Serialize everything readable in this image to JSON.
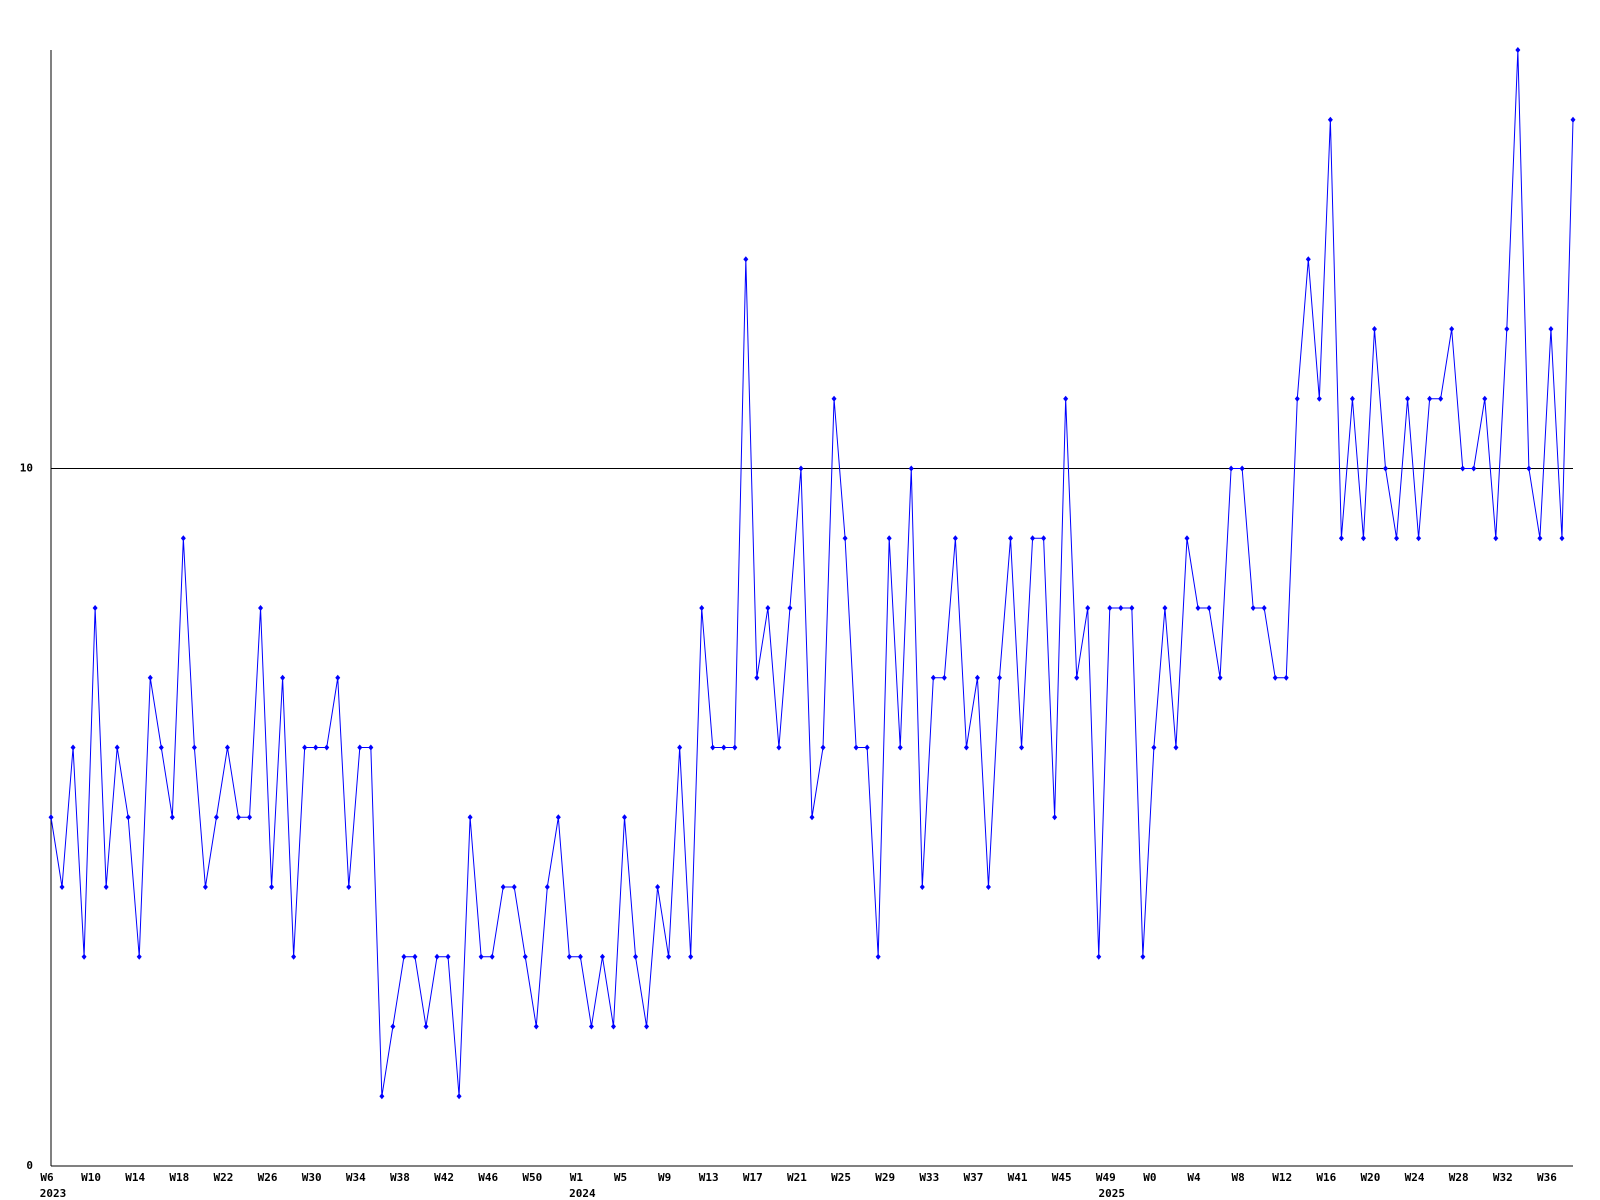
{
  "chart_data": {
    "type": "line",
    "color": "#0000ff",
    "categories": [
      "W6",
      null,
      null,
      null,
      "W10",
      null,
      null,
      null,
      "W14",
      null,
      null,
      null,
      "W18",
      null,
      null,
      null,
      "W22",
      null,
      null,
      null,
      "W26",
      null,
      null,
      null,
      "W30",
      null,
      null,
      null,
      "W34",
      null,
      null,
      null,
      "W38",
      null,
      null,
      null,
      "W42",
      null,
      null,
      null,
      "W46",
      null,
      null,
      null,
      "W50",
      null,
      null,
      null,
      "W1",
      null,
      null,
      null,
      "W5",
      null,
      null,
      null,
      "W9",
      null,
      null,
      null,
      "W13",
      null,
      null,
      null,
      "W17",
      null,
      null,
      null,
      "W21",
      null,
      null,
      null,
      "W25",
      null,
      null,
      null,
      "W29",
      null,
      null,
      null,
      "W33",
      null,
      null,
      null,
      "W37",
      null,
      null,
      null,
      "W41",
      null,
      null,
      null,
      "W45",
      null,
      null,
      null,
      "W49",
      null,
      null,
      null,
      "W0",
      null,
      null,
      null,
      "W4",
      null,
      null,
      null,
      "W8",
      null,
      null,
      null,
      "W12",
      null,
      null,
      null,
      "W16",
      null,
      null,
      null,
      "W20",
      null,
      null,
      null,
      "W24",
      null,
      null,
      null,
      "W28",
      null,
      null,
      null,
      "W32",
      null,
      null,
      null,
      "W36",
      null,
      null
    ],
    "years": [
      "2023",
      null,
      null,
      null,
      null,
      null,
      null,
      null,
      null,
      null,
      null,
      null,
      null,
      null,
      null,
      null,
      null,
      null,
      null,
      null,
      null,
      null,
      null,
      null,
      null,
      null,
      null,
      null,
      null,
      null,
      null,
      null,
      null,
      null,
      null,
      null,
      null,
      null,
      null,
      null,
      null,
      null,
      null,
      null,
      null,
      null,
      null,
      null,
      "2024",
      null,
      null,
      null,
      null,
      null,
      null,
      null,
      null,
      null,
      null,
      null,
      null,
      null,
      null,
      null,
      null,
      null,
      null,
      null,
      null,
      null,
      null,
      null,
      null,
      null,
      null,
      null,
      null,
      null,
      null,
      null,
      null,
      null,
      null,
      null,
      null,
      null,
      null,
      null,
      null,
      null,
      null,
      null,
      null,
      null,
      null,
      null,
      "2025",
      null,
      null,
      null,
      null,
      null,
      null,
      null,
      null,
      null,
      null,
      null,
      null,
      null,
      null,
      null,
      null,
      null,
      null,
      null,
      null,
      null,
      null,
      null,
      null,
      null,
      null,
      null,
      null,
      null,
      null,
      null,
      null,
      null,
      null,
      null,
      null,
      null,
      null
    ],
    "values": [
      5,
      4,
      6,
      3,
      8,
      4,
      6,
      5,
      3,
      7,
      6,
      5,
      9,
      6,
      4,
      5,
      6,
      5,
      5,
      8,
      4,
      7,
      3,
      6,
      6,
      6,
      7,
      4,
      6,
      6,
      1,
      2,
      3,
      3,
      2,
      3,
      3,
      1,
      5,
      3,
      3,
      4,
      4,
      3,
      2,
      4,
      5,
      3,
      3,
      2,
      3,
      2,
      5,
      3,
      2,
      4,
      3,
      6,
      3,
      8,
      6,
      6,
      6,
      13,
      7,
      8,
      6,
      8,
      10,
      5,
      6,
      11,
      9,
      6,
      6,
      3,
      9,
      6,
      10,
      4,
      7,
      7,
      9,
      6,
      7,
      4,
      7,
      9,
      6,
      9,
      9,
      5,
      11,
      7,
      8,
      3,
      8,
      8,
      8,
      3,
      6,
      8,
      6,
      9,
      8,
      8,
      7,
      10,
      10,
      8,
      8,
      7,
      7,
      11,
      13,
      11,
      15,
      9,
      11,
      9,
      12,
      10,
      9,
      11,
      9,
      11,
      11,
      12,
      10,
      10,
      11,
      9,
      12,
      16,
      10,
      9,
      12,
      9,
      15
    ],
    "ylim": [
      0,
      16
    ],
    "yticks": [
      0,
      10
    ],
    "grid": true
  }
}
